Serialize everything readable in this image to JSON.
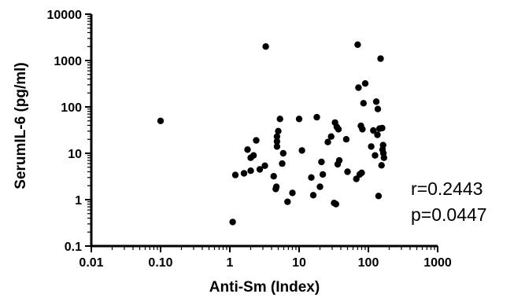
{
  "chart_data": {
    "type": "scatter",
    "xlabel": "Anti-Sm (Index)",
    "ylabel": "SerumIL-6 (pg/ml)",
    "x_scale": "log",
    "y_scale": "log",
    "xlim": [
      0.01,
      1000
    ],
    "ylim": [
      0.1,
      10000
    ],
    "x_ticks": [
      "0.01",
      "0.10",
      "1",
      "10",
      "100",
      "1000"
    ],
    "y_ticks": [
      "0.1",
      "1",
      "10",
      "100",
      "1000",
      "10000"
    ],
    "grid": false,
    "marker_color": "#000000",
    "annotations": [
      "r=0.2443",
      "p=0.0447"
    ],
    "x": [
      0.1,
      1.1,
      1.2,
      1.6,
      1.8,
      2.0,
      2.0,
      2.2,
      2.4,
      2.7,
      3.2,
      3.3,
      4.3,
      4.6,
      4.7,
      4.8,
      4.8,
      4.8,
      5.0,
      5.3,
      5.7,
      5.9,
      6.8,
      8.0,
      10.0,
      11.0,
      15.0,
      16.0,
      18.0,
      20.0,
      21.0,
      22.0,
      26.0,
      29.0,
      32.0,
      33.0,
      34.0,
      35.0,
      36.0,
      37.0,
      38.0,
      48.0,
      50.0,
      67.0,
      70.0,
      72.0,
      75.0,
      78.0,
      80.0,
      82.0,
      85.0,
      90.0,
      110.0,
      118.0,
      125.0,
      130.0,
      135.0,
      137.0,
      140.0,
      145.0,
      150.0,
      155.0,
      158.0,
      160.0,
      163.0,
      165.0,
      168.0
    ],
    "y": [
      50,
      0.33,
      3.4,
      3.7,
      12,
      4.2,
      8,
      9,
      19,
      4.5,
      5.4,
      2000,
      3.2,
      1.7,
      1.9,
      14,
      18,
      23,
      30,
      55,
      6,
      10,
      0.9,
      1.4,
      55,
      11.5,
      3,
      1.25,
      60,
      1.9,
      6.5,
      3.5,
      17.5,
      23,
      0.85,
      46,
      0.8,
      37,
      5.8,
      33,
      7,
      20,
      4,
      2.8,
      2200,
      260,
      3.5,
      39,
      3.8,
      33,
      120,
      320,
      14,
      31,
      9,
      130,
      25,
      90,
      1.2,
      34,
      1100,
      5.5,
      35,
      12,
      15,
      10,
      8
    ]
  }
}
